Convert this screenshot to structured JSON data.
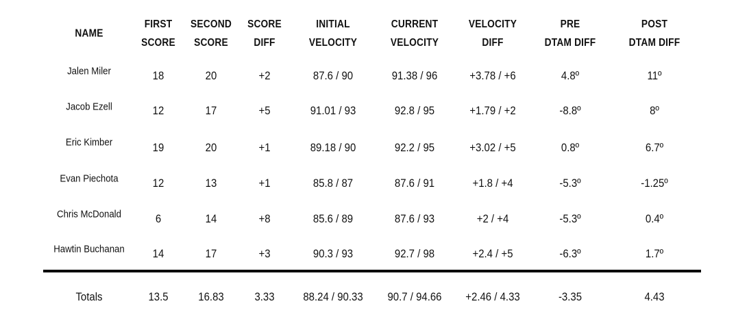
{
  "headers": [
    {
      "l1": "NAME",
      "l2": ""
    },
    {
      "l1": "FIRST",
      "l2": "SCORE"
    },
    {
      "l1": "SECOND",
      "l2": "SCORE"
    },
    {
      "l1": "SCORE",
      "l2": "DIFF"
    },
    {
      "l1": "INITIAL",
      "l2": "VELOCITY"
    },
    {
      "l1": "CURRENT",
      "l2": "VELOCITY"
    },
    {
      "l1": "VELOCITY",
      "l2": "DIFF"
    },
    {
      "l1": "PRE",
      "l2": "DTAM DIFF"
    },
    {
      "l1": "POST",
      "l2": "DTAM DIFF"
    }
  ],
  "rows": [
    {
      "name": "Jalen Miler",
      "first": "18",
      "second": "20",
      "score_diff": "+2",
      "initial_velocity": "87.6 / 90",
      "current_velocity": "91.38 / 96",
      "velocity_diff": "+3.78 / +6",
      "pre_dtam": "4.8º",
      "post_dtam": "11º"
    },
    {
      "name": "Jacob Ezell",
      "first": "12",
      "second": "17",
      "score_diff": "+5",
      "initial_velocity": "91.01 / 93",
      "current_velocity": "92.8 /  95",
      "velocity_diff": "+1.79 / +2",
      "pre_dtam": "-8.8º",
      "post_dtam": "8º"
    },
    {
      "name": "Eric Kimber",
      "first": "19",
      "second": "20",
      "score_diff": "+1",
      "initial_velocity": "89.18 / 90",
      "current_velocity": "92.2 / 95",
      "velocity_diff": "+3.02 / +5",
      "pre_dtam": "0.8º",
      "post_dtam": "6.7º"
    },
    {
      "name": "Evan Piechota",
      "first": "12",
      "second": "13",
      "score_diff": "+1",
      "initial_velocity": "85.8 / 87",
      "current_velocity": "87.6 /  91",
      "velocity_diff": "+1.8 / +4",
      "pre_dtam": "-5.3º",
      "post_dtam": "-1.25º"
    },
    {
      "name": "Chris McDonald",
      "first": "6",
      "second": "14",
      "score_diff": "+8",
      "initial_velocity": "85.6 / 89",
      "current_velocity": "87.6 / 93",
      "velocity_diff": "+2 / +4",
      "pre_dtam": "-5.3º",
      "post_dtam": "0.4º"
    },
    {
      "name": "Hawtin Buchanan",
      "first": "14",
      "second": "17",
      "score_diff": "+3",
      "initial_velocity": "90.3 / 93",
      "current_velocity": "92.7 / 98",
      "velocity_diff": "+2.4 /  +5",
      "pre_dtam": "-6.3º",
      "post_dtam": "1.7º"
    }
  ],
  "totals": {
    "name": "Totals",
    "first": "13.5",
    "second": "16.83",
    "score_diff": "3.33",
    "initial_velocity": "88.24 / 90.33",
    "current_velocity": "90.7 / 94.66",
    "velocity_diff": "+2.46 /  4.33",
    "pre_dtam": "-3.35",
    "post_dtam": "4.43"
  }
}
